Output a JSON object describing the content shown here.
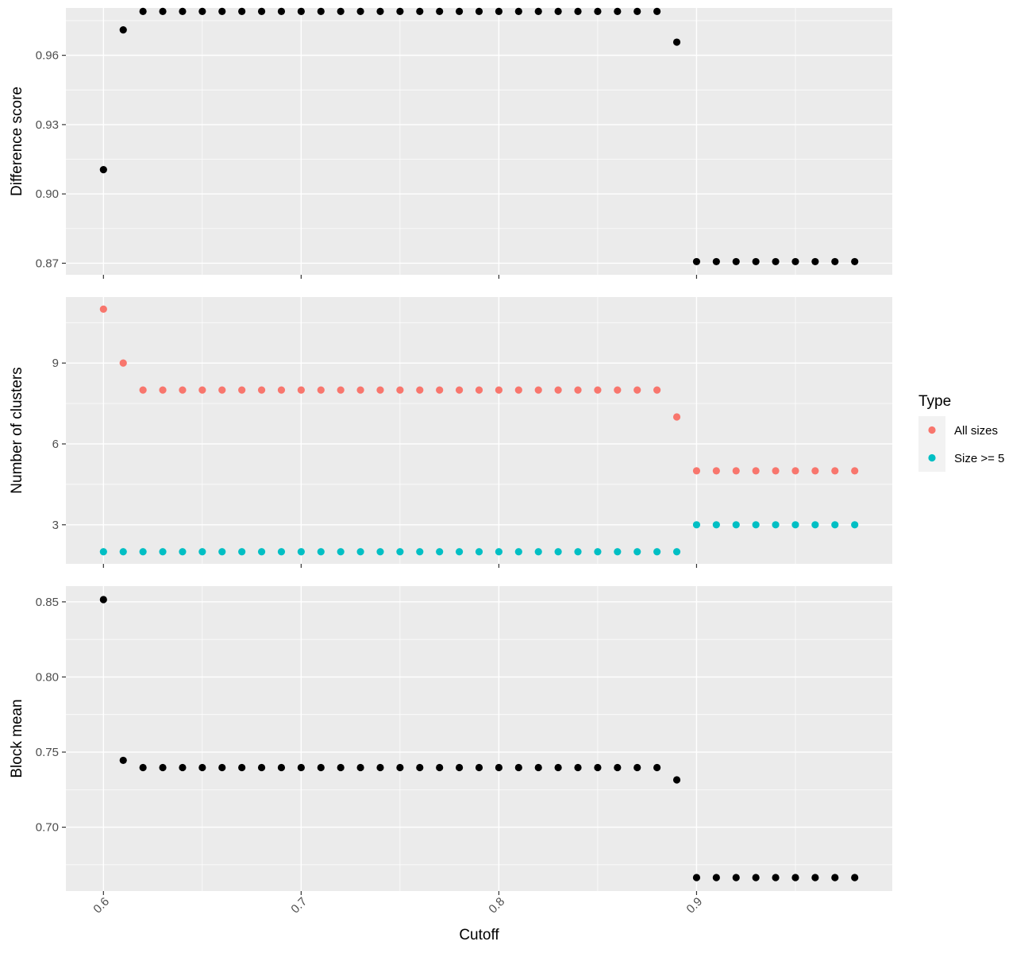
{
  "chart_data": [
    {
      "type": "scatter",
      "panel": "difference-score",
      "title": "",
      "xlabel": "",
      "ylabel": "Difference score",
      "ylim": [
        0.865,
        0.9805
      ],
      "yticks": [
        0.87,
        0.9,
        0.93,
        0.96
      ],
      "ytick_labels": [
        "0.87",
        "0.90",
        "0.93",
        "0.96"
      ],
      "grid": true,
      "series": [
        {
          "color": "#000000",
          "x": [
            0.6,
            0.61,
            0.62,
            0.63,
            0.64,
            0.65,
            0.66,
            0.67,
            0.68,
            0.69,
            0.7,
            0.71,
            0.72,
            0.73,
            0.74,
            0.75,
            0.76,
            0.77,
            0.78,
            0.79,
            0.8,
            0.81,
            0.82,
            0.83,
            0.84,
            0.85,
            0.86,
            0.87,
            0.88,
            0.89,
            0.9,
            0.91,
            0.92,
            0.93,
            0.94,
            0.95,
            0.96,
            0.97,
            0.98
          ],
          "y": [
            0.9105,
            0.971,
            0.979,
            0.979,
            0.979,
            0.979,
            0.979,
            0.979,
            0.979,
            0.979,
            0.979,
            0.979,
            0.979,
            0.979,
            0.979,
            0.979,
            0.979,
            0.979,
            0.979,
            0.979,
            0.979,
            0.979,
            0.979,
            0.979,
            0.979,
            0.979,
            0.979,
            0.979,
            0.979,
            0.9657,
            0.8707,
            0.8707,
            0.8707,
            0.8707,
            0.8707,
            0.8707,
            0.8707,
            0.8707,
            0.8707
          ]
        }
      ]
    },
    {
      "type": "scatter",
      "panel": "number-of-clusters",
      "title": "",
      "xlabel": "",
      "ylabel": "Number of clusters",
      "ylim": [
        1.55,
        11.45
      ],
      "yticks": [
        3,
        6,
        9
      ],
      "ytick_labels": [
        "3",
        "6",
        "9"
      ],
      "grid": true,
      "legend": {
        "title": "Type",
        "position": "right"
      },
      "series": [
        {
          "name": "All sizes",
          "color": "#f8766d",
          "x": [
            0.6,
            0.61,
            0.62,
            0.63,
            0.64,
            0.65,
            0.66,
            0.67,
            0.68,
            0.69,
            0.7,
            0.71,
            0.72,
            0.73,
            0.74,
            0.75,
            0.76,
            0.77,
            0.78,
            0.79,
            0.8,
            0.81,
            0.82,
            0.83,
            0.84,
            0.85,
            0.86,
            0.87,
            0.88,
            0.89,
            0.9,
            0.91,
            0.92,
            0.93,
            0.94,
            0.95,
            0.96,
            0.97,
            0.98
          ],
          "y": [
            11,
            9,
            8,
            8,
            8,
            8,
            8,
            8,
            8,
            8,
            8,
            8,
            8,
            8,
            8,
            8,
            8,
            8,
            8,
            8,
            8,
            8,
            8,
            8,
            8,
            8,
            8,
            8,
            8,
            7,
            5,
            5,
            5,
            5,
            5,
            5,
            5,
            5,
            5
          ]
        },
        {
          "name": "Size >= 5",
          "color": "#00bfc4",
          "x": [
            0.6,
            0.61,
            0.62,
            0.63,
            0.64,
            0.65,
            0.66,
            0.67,
            0.68,
            0.69,
            0.7,
            0.71,
            0.72,
            0.73,
            0.74,
            0.75,
            0.76,
            0.77,
            0.78,
            0.79,
            0.8,
            0.81,
            0.82,
            0.83,
            0.84,
            0.85,
            0.86,
            0.87,
            0.88,
            0.89,
            0.9,
            0.91,
            0.92,
            0.93,
            0.94,
            0.95,
            0.96,
            0.97,
            0.98
          ],
          "y": [
            2,
            2,
            2,
            2,
            2,
            2,
            2,
            2,
            2,
            2,
            2,
            2,
            2,
            2,
            2,
            2,
            2,
            2,
            2,
            2,
            2,
            2,
            2,
            2,
            2,
            2,
            2,
            2,
            2,
            2,
            3,
            3,
            3,
            3,
            3,
            3,
            3,
            3,
            3
          ]
        }
      ]
    },
    {
      "type": "scatter",
      "panel": "block-mean",
      "title": "",
      "xlabel": "Cutoff",
      "ylabel": "Block mean",
      "ylim": [
        0.6575,
        0.8605
      ],
      "yticks": [
        0.7,
        0.75,
        0.8,
        0.85
      ],
      "ytick_labels": [
        "0.70",
        "0.75",
        "0.80",
        "0.85"
      ],
      "grid": true,
      "series": [
        {
          "color": "#000000",
          "x": [
            0.6,
            0.61,
            0.62,
            0.63,
            0.64,
            0.65,
            0.66,
            0.67,
            0.68,
            0.69,
            0.7,
            0.71,
            0.72,
            0.73,
            0.74,
            0.75,
            0.76,
            0.77,
            0.78,
            0.79,
            0.8,
            0.81,
            0.82,
            0.83,
            0.84,
            0.85,
            0.86,
            0.87,
            0.88,
            0.89,
            0.9,
            0.91,
            0.92,
            0.93,
            0.94,
            0.95,
            0.96,
            0.97,
            0.98
          ],
          "y": [
            0.8515,
            0.7445,
            0.7397,
            0.7397,
            0.7397,
            0.7397,
            0.7397,
            0.7397,
            0.7397,
            0.7397,
            0.7397,
            0.7397,
            0.7397,
            0.7397,
            0.7397,
            0.7397,
            0.7397,
            0.7397,
            0.7397,
            0.7397,
            0.7397,
            0.7397,
            0.7397,
            0.7397,
            0.7397,
            0.7397,
            0.7397,
            0.7397,
            0.7397,
            0.7315,
            0.6665,
            0.6665,
            0.6665,
            0.6665,
            0.6665,
            0.6665,
            0.6665,
            0.6665,
            0.6665
          ]
        }
      ]
    }
  ],
  "x_axis": {
    "xlim": [
      0.581,
      0.999
    ],
    "ticks": [
      0.6,
      0.7,
      0.8,
      0.9
    ],
    "tick_labels": [
      "0.6",
      "0.7",
      "0.8",
      "0.9"
    ],
    "tick_label_rotation_deg": -45
  }
}
